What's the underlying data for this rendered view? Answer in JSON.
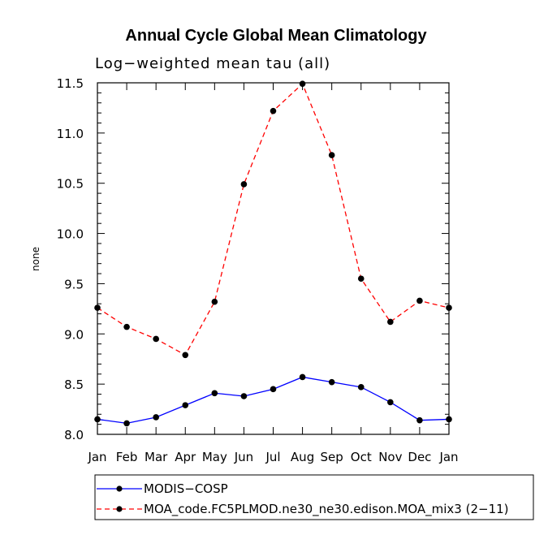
{
  "chart_data": {
    "type": "line",
    "title": "Annual Cycle Global Mean Climatology",
    "subtitle": "Log−weighted mean tau (all)",
    "xlabel": "",
    "ylabel": "none",
    "categories": [
      "Jan",
      "Feb",
      "Mar",
      "Apr",
      "May",
      "Jun",
      "Jul",
      "Aug",
      "Sep",
      "Oct",
      "Nov",
      "Dec",
      "Jan"
    ],
    "ylim": [
      8.0,
      11.5
    ],
    "yticks": [
      8.0,
      8.5,
      9.0,
      9.5,
      10.0,
      10.5,
      11.0,
      11.5
    ],
    "ytick_labels": [
      "8.0",
      "8.5",
      "9.0",
      "9.5",
      "10.0",
      "10.5",
      "11.0",
      "11.5"
    ],
    "series": [
      {
        "name": "MODIS−COSP",
        "color": "#0000ff",
        "dash": "solid",
        "marker": "filled-circle",
        "values": [
          8.15,
          8.11,
          8.17,
          8.29,
          8.41,
          8.38,
          8.45,
          8.57,
          8.52,
          8.47,
          8.32,
          8.14,
          8.15
        ]
      },
      {
        "name": "MOA_code.FC5PLMOD.ne30_ne30.edison.MOA_mix3 (2−11)",
        "color": "#ff0000",
        "dash": "dashed",
        "marker": "filled-circle",
        "values": [
          9.26,
          9.07,
          8.95,
          8.79,
          9.32,
          10.49,
          11.22,
          11.49,
          10.78,
          9.55,
          9.12,
          9.33,
          9.26
        ]
      }
    ],
    "legend_position": "bottom-left"
  }
}
